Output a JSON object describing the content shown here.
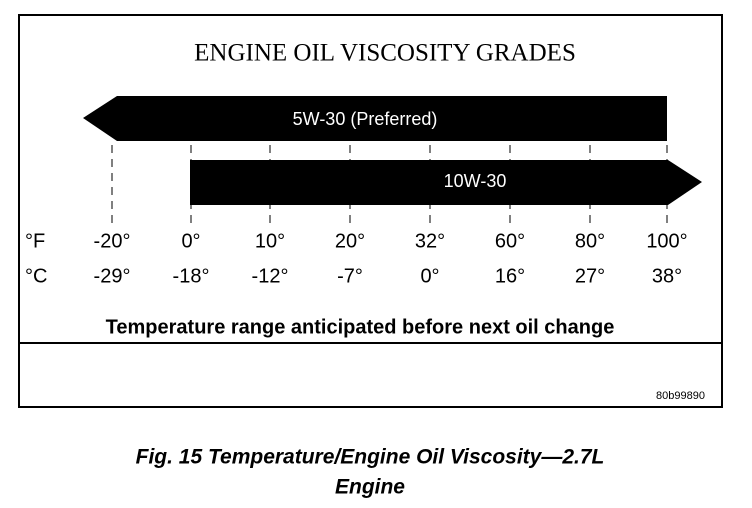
{
  "title": "ENGINE OIL VISCOSITY GRADES",
  "arrows": [
    {
      "label": "5W-30 (Preferred)"
    },
    {
      "label": "10W-30"
    }
  ],
  "scale": {
    "f_unit": "°F",
    "c_unit": "°C",
    "f": [
      "-20°",
      "0°",
      "10°",
      "20°",
      "32°",
      "60°",
      "80°",
      "100°"
    ],
    "c": [
      "-29°",
      "-18°",
      "-12°",
      "-7°",
      "0°",
      "16°",
      "27°",
      "38°"
    ]
  },
  "range_note": "Temperature range anticipated before next oil change",
  "code": "80b99890",
  "caption": [
    "Fig. 15 Temperature/Engine Oil Viscosity—2.7L",
    "Engine"
  ]
}
